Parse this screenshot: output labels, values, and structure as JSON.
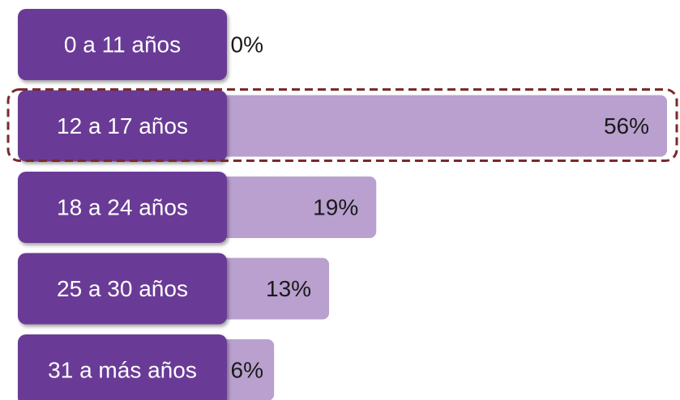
{
  "chart_data": {
    "type": "hbar",
    "categories": [
      "0 a 11 años",
      "12 a 17 años",
      "18 a 24 años",
      "25 a 30 años",
      "31 a más años"
    ],
    "values": [
      0,
      56,
      19,
      13,
      6
    ],
    "value_labels": [
      "0%",
      "56%",
      "19%",
      "13%",
      "6%"
    ],
    "color": "#b9a0cf",
    "label_color": "#6a3b96",
    "highlight": 1
  }
}
